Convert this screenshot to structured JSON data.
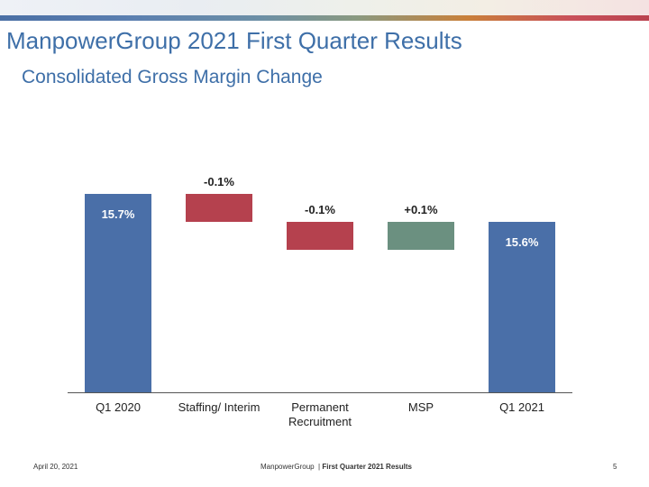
{
  "slide": {
    "title": "ManpowerGroup 2021 First Quarter Results",
    "subtitle": "Consolidated Gross Margin Change",
    "footer_date": "April 20, 2021",
    "footer_company": "ManpowerGroup",
    "footer_separator": "|",
    "footer_report": "First Quarter 2021 Results",
    "page_number": "5"
  },
  "colors": {
    "title": "#3e6fa8",
    "total_bar": "#4a6fa8",
    "decrease_bar": "#b5414e",
    "increase_bar": "#6b9080"
  },
  "chart_data": {
    "type": "bar",
    "subtype": "waterfall",
    "categories": [
      "Q1 2020",
      "Staffing/ Interim",
      "Permanent\nRecruitment",
      "MSP",
      "Q1 2021"
    ],
    "values": [
      15.7,
      -0.1,
      -0.1,
      0.1,
      15.6
    ],
    "kinds": [
      "total",
      "decrease",
      "decrease",
      "increase",
      "total"
    ],
    "labels": [
      "15.7%",
      "-0.1%",
      "-0.1%",
      "+0.1%",
      "15.6%"
    ],
    "unit": "%",
    "grid": false,
    "legend": "none"
  }
}
